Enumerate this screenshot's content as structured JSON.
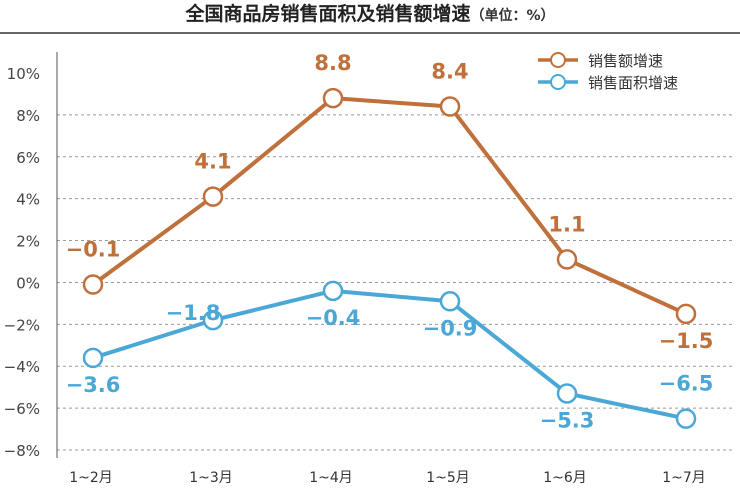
{
  "chart_data": {
    "type": "line",
    "title": "全国商品房销售面积及销售额增速",
    "unit_note": "（单位：%）",
    "categories": [
      "1~2月",
      "1~3月",
      "1~4月",
      "1~5月",
      "1~6月",
      "1~7月"
    ],
    "series": [
      {
        "name": "销售额增速",
        "color": "#c0703a",
        "values": [
          -0.1,
          4.1,
          8.8,
          8.4,
          1.1,
          -1.5
        ],
        "labels": [
          "−0.1",
          "4.1",
          "8.8",
          "8.4",
          "1.1",
          "−1.5"
        ]
      },
      {
        "name": "销售面积增速",
        "color": "#4ba7d6",
        "values": [
          -3.6,
          -1.8,
          -0.4,
          -0.9,
          -5.3,
          -6.5
        ],
        "labels": [
          "−3.6",
          "−1.8",
          "−0.4",
          "−0.9",
          "−5.3",
          "−6.5"
        ]
      }
    ],
    "ylim": [
      -8,
      10
    ],
    "yticks": [
      10,
      8,
      6,
      4,
      2,
      0,
      -2,
      -4,
      -6,
      -8
    ],
    "ytick_labels": [
      "10%",
      "8%",
      "6%",
      "4%",
      "2%",
      "0%",
      "−2%",
      "−4%",
      "−6%",
      "−8%"
    ],
    "grid": true,
    "legend_position": "top-right"
  }
}
